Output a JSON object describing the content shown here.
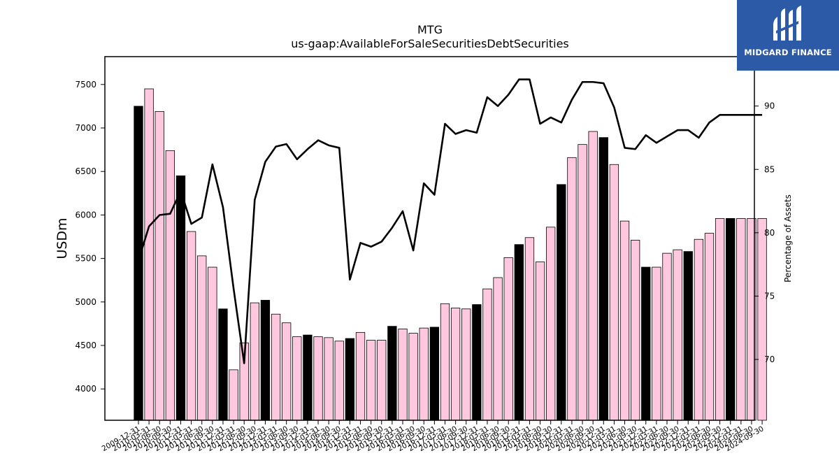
{
  "chart_data": {
    "type": "bar",
    "title": "MTG",
    "subtitle": "us-gaap:AvailableForSaleSecuritiesDebtSecurities",
    "ylabel": "USDm",
    "y2label": "Percentage of Assets",
    "ylim": [
      3640,
      7820
    ],
    "y2lim": [
      65.2,
      93.9
    ],
    "yticks": [
      4000,
      4500,
      5000,
      5500,
      6000,
      6500,
      7000,
      7500
    ],
    "y2ticks": [
      70,
      75,
      80,
      85,
      90
    ],
    "categories": [
      "2009-12-31",
      "2010-03-31",
      "2010-06-30",
      "2010-09-30",
      "2010-12-31",
      "2011-03-31",
      "2011-06-30",
      "2011-09-30",
      "2011-12-31",
      "2012-03-31",
      "2012-06-30",
      "2012-09-30",
      "2012-12-31",
      "2013-03-31",
      "2013-06-30",
      "2013-09-30",
      "2013-12-31",
      "2014-03-31",
      "2014-06-30",
      "2014-09-30",
      "2014-12-31",
      "2015-03-31",
      "2015-06-30",
      "2015-09-30",
      "2015-12-31",
      "2016-03-31",
      "2016-06-30",
      "2016-09-30",
      "2016-12-31",
      "2017-03-31",
      "2017-06-30",
      "2017-09-30",
      "2017-12-31",
      "2018-03-31",
      "2018-06-30",
      "2018-09-30",
      "2018-12-31",
      "2019-03-31",
      "2019-06-30",
      "2019-09-30",
      "2019-12-31",
      "2020-03-31",
      "2020-06-30",
      "2020-09-30",
      "2020-12-31",
      "2021-03-31",
      "2021-06-30",
      "2021-09-30",
      "2021-12-31",
      "2022-03-31",
      "2022-06-30",
      "2022-09-30",
      "2022-12-31",
      "2023-03-31",
      "2023-06-30",
      "2023-09-30",
      "2023-12-31",
      "2024-03-31",
      "2024-06-30",
      "2024-09-30"
    ],
    "xtick_labels": [
      "2009-12-31",
      "2010-03-31",
      "2010-06-30",
      "2010-09-30",
      "2010-12-31",
      "2011-03-31",
      "2011-06-30",
      "2011-09-30",
      "2011-12-31",
      "2012-03-31",
      "2012-06-30",
      "2012-09-30",
      "2012-12-31",
      "2013-03-31",
      "2013-06-30",
      "2013-09-30",
      "2013-12-31",
      "2014-03-31",
      "2014-06-30",
      "2014-09-30",
      "2014-12-31",
      "2015-03-31",
      "2015-06-30",
      "2015-09-30",
      "2015-12-31",
      "2016-03-31",
      "2016-06-30",
      "2016-09-30",
      "2016-12-31",
      "2017-03-31",
      "2017-06-30",
      "2017-09-30",
      "2017-12-31",
      "2018-03-31",
      "2018-06-30",
      "2018-09-30",
      "2018-12-31",
      "2019-03-31",
      "2019-06-30",
      "2019-09-30",
      "2019-12-31",
      "2020-03-31",
      "2020-06-30",
      "2020-09-30",
      "2020-12-31",
      "2021-03-31",
      "2021-06-30",
      "2021-09-30",
      "2021-12-31",
      "2022-03-31",
      "2022-06-30",
      "2022-09-30",
      "2022-12-31",
      "2023-03-31",
      "2023-06-30",
      "2023-09-30",
      "2023-12-31",
      "2024-03-31",
      "2024-06-30",
      "2024-09-30"
    ],
    "bar_series": {
      "values": [
        7250,
        7450,
        7190,
        6740,
        6450,
        5810,
        5530,
        5400,
        4920,
        4220,
        4530,
        4990,
        5020,
        4860,
        4760,
        4600,
        4620,
        4600,
        4590,
        4550,
        4580,
        4650,
        4560,
        4560,
        4720,
        4690,
        4640,
        4700,
        4710,
        4980,
        4930,
        4920,
        4970,
        5150,
        5280,
        5510,
        5660,
        5740,
        5460,
        5860,
        6350,
        6660,
        6810,
        6960,
        6890,
        6580,
        5930,
        5710,
        5400,
        5400,
        5560,
        5600,
        5580,
        5720,
        5790,
        5960,
        5960,
        5960,
        5960,
        5960
      ],
      "highlight_year_end": true
    },
    "line_series": {
      "values": [
        77.8,
        80.5,
        81.4,
        81.5,
        83.3,
        80.7,
        81.2,
        85.4,
        82.0,
        75.6,
        69.7,
        82.6,
        85.6,
        86.8,
        87.0,
        85.8,
        86.6,
        87.3,
        86.9,
        86.7,
        76.3,
        79.2,
        78.9,
        79.3,
        80.4,
        81.7,
        78.6,
        83.9,
        83.0,
        88.6,
        87.8,
        88.1,
        87.9,
        90.7,
        90.0,
        90.9,
        92.1,
        92.1,
        88.6,
        89.1,
        88.7,
        90.5,
        91.9,
        91.9,
        91.8,
        89.9,
        86.7,
        86.6,
        87.7,
        87.1,
        87.6,
        88.1,
        88.1,
        87.5,
        88.7,
        89.3,
        89.3,
        89.3,
        89.3,
        89.3
      ]
    },
    "colors": {
      "bar_highlight": "#000000",
      "bar_default": "#ffc8df",
      "line": "#000000"
    },
    "grid": false,
    "legend": "none"
  },
  "logo": {
    "text": "MIDGARD FINANCE",
    "background": "#2d5aa7"
  }
}
